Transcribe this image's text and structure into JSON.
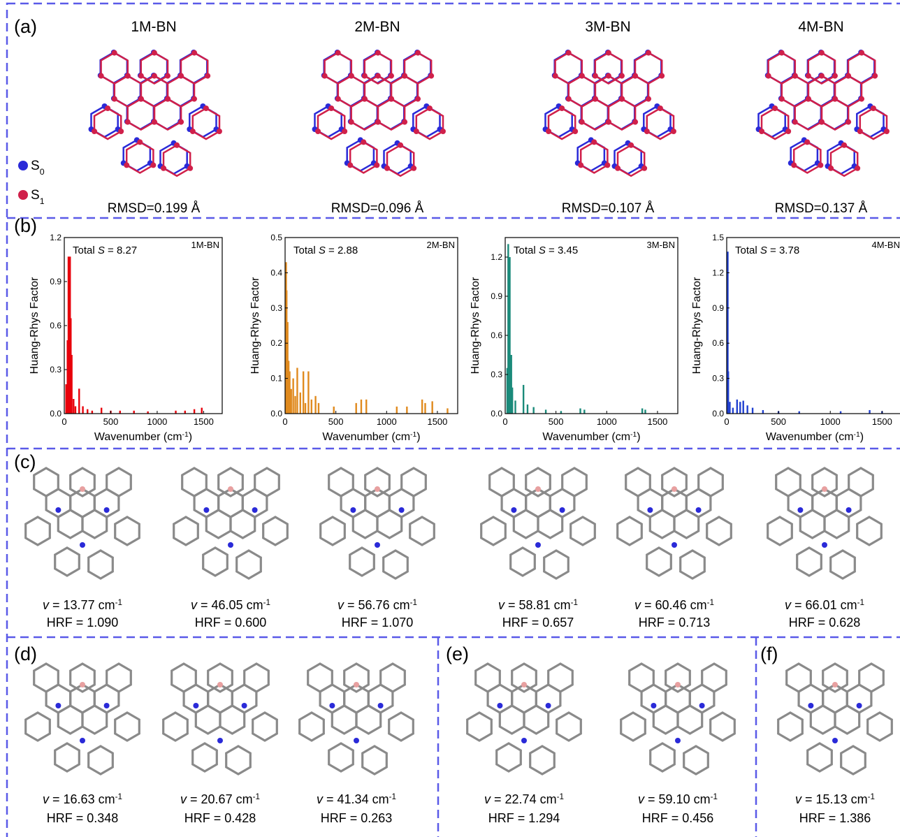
{
  "panel_a": {
    "label": "(a)",
    "structures": [
      {
        "name": "1M-BN",
        "rmsd": "RMSD=0.199 Å"
      },
      {
        "name": "2M-BN",
        "rmsd": "RMSD=0.096 Å"
      },
      {
        "name": "3M-BN",
        "rmsd": "RMSD=0.107 Å"
      },
      {
        "name": "4M-BN",
        "rmsd": "RMSD=0.137 Å"
      }
    ],
    "legend": [
      {
        "symbol": "S",
        "subscript": "0",
        "color": "#2a2ad8"
      },
      {
        "symbol": "S",
        "subscript": "1",
        "color": "#d0204a"
      }
    ]
  },
  "panel_b": {
    "label": "(b)"
  },
  "chart_data": [
    {
      "type": "bar",
      "annotation": {
        "prefix": "Total ",
        "symbol": "S",
        "suffix": " = 8.27"
      },
      "x_label": {
        "text": "Wavenumber (cm",
        "sup": "-1",
        "close": ")"
      },
      "y_label": "Huang-Rhys Factor",
      "x": [
        20,
        35,
        45,
        55,
        62,
        70,
        80,
        100,
        120,
        160,
        200,
        250,
        300,
        400,
        500,
        600,
        750,
        900,
        1200,
        1300,
        1400,
        1480
      ],
      "series": [
        {
          "name": "1M-BN",
          "color": "#e8000b",
          "values": [
            0.2,
            0.5,
            1.07,
            0.9,
            1.07,
            0.65,
            0.4,
            0.1,
            0.05,
            0.17,
            0.05,
            0.03,
            0.02,
            0.04,
            0.02,
            0.02,
            0.02,
            0.015,
            0.02,
            0.02,
            0.03,
            0.04
          ]
        }
      ],
      "xlim": [
        0,
        1700
      ],
      "xticks": [
        0,
        500,
        1000,
        1500
      ],
      "ylim": [
        0,
        1.2
      ],
      "yticks": [
        {
          "value": 0,
          "label": "0.0"
        },
        0.3,
        0.6,
        0.9,
        1.2
      ]
    },
    {
      "type": "bar",
      "annotation": {
        "prefix": "Total ",
        "symbol": "S",
        "suffix": " = 2.88"
      },
      "x_label": {
        "text": "Wavenumber (cm",
        "sup": "-1",
        "close": ")"
      },
      "y_label": "Huang-Rhys Factor",
      "x": [
        10,
        15,
        25,
        35,
        45,
        60,
        80,
        100,
        120,
        150,
        180,
        200,
        230,
        260,
        300,
        330,
        480,
        700,
        750,
        800,
        1100,
        1200,
        1350,
        1380,
        1450,
        1600
      ],
      "series": [
        {
          "name": "2M-BN",
          "color": "#e08a1e",
          "values": [
            0.43,
            0.35,
            0.26,
            0.15,
            0.12,
            0.07,
            0.1,
            0.05,
            0.13,
            0.06,
            0.12,
            0.03,
            0.12,
            0.04,
            0.05,
            0.03,
            0.02,
            0.03,
            0.04,
            0.04,
            0.02,
            0.02,
            0.04,
            0.03,
            0.035,
            0.015
          ]
        }
      ],
      "xlim": [
        0,
        1700
      ],
      "xticks": [
        0,
        500,
        1000,
        1500
      ],
      "ylim": [
        0,
        0.5
      ],
      "yticks": [
        {
          "value": 0,
          "label": "0.0"
        },
        0.1,
        0.2,
        0.3,
        0.4,
        0.5
      ]
    },
    {
      "type": "bar",
      "annotation": {
        "prefix": "Total ",
        "symbol": "S",
        "suffix": " = 3.45"
      },
      "x_label": {
        "text": "Wavenumber (cm",
        "sup": "-1",
        "close": ")"
      },
      "y_label": "Huang-Rhys Factor",
      "x": [
        20,
        30,
        45,
        60,
        70,
        100,
        180,
        220,
        280,
        400,
        550,
        740,
        780,
        1350,
        1380
      ],
      "series": [
        {
          "name": "3M-BN",
          "color": "#1a8a7a",
          "values": [
            0.35,
            1.3,
            1.2,
            0.45,
            0.2,
            0.1,
            0.22,
            0.07,
            0.05,
            0.03,
            0.02,
            0.04,
            0.03,
            0.04,
            0.03
          ]
        }
      ],
      "xlim": [
        0,
        1700
      ],
      "xticks": [
        0,
        500,
        1000,
        1500
      ],
      "ylim": [
        0,
        1.35
      ],
      "yticks": [
        {
          "value": 0,
          "label": "0.0"
        },
        0.3,
        0.6,
        0.9,
        1.2
      ]
    },
    {
      "type": "bar",
      "annotation": {
        "prefix": "Total ",
        "symbol": "S",
        "suffix": " = 3.78"
      },
      "x_label": {
        "text": "Wavenumber (cm",
        "sup": "-1",
        "close": ")"
      },
      "y_label": "Huang-Rhys Factor",
      "x": [
        10,
        15,
        30,
        60,
        100,
        130,
        160,
        200,
        250,
        350,
        500,
        700,
        1100,
        1380,
        1500
      ],
      "series": [
        {
          "name": "4M-BN",
          "color": "#2040d0",
          "values": [
            1.38,
            0.36,
            0.1,
            0.05,
            0.12,
            0.1,
            0.11,
            0.07,
            0.05,
            0.03,
            0.02,
            0.02,
            0.02,
            0.03,
            0.02
          ]
        }
      ],
      "xlim": [
        0,
        1700
      ],
      "xticks": [
        0,
        500,
        1000,
        1500
      ],
      "ylim": [
        0,
        1.5
      ],
      "yticks": [
        {
          "value": 0,
          "label": "0.0"
        },
        0.3,
        0.6,
        0.9,
        1.2,
        1.5
      ]
    }
  ],
  "panel_c": {
    "label": "(c)",
    "modes": [
      {
        "v": "v",
        "freq": " = 13.77 cm",
        "sup": "-1",
        "hrf": "HRF = 1.090"
      },
      {
        "v": "v",
        "freq": " = 46.05 cm",
        "sup": "-1",
        "hrf": "HRF = 0.600"
      },
      {
        "v": "v",
        "freq": " = 56.76 cm",
        "sup": "-1",
        "hrf": "HRF = 1.070"
      },
      {
        "v": "v",
        "freq": " = 58.81 cm",
        "sup": "-1",
        "hrf": "HRF = 0.657"
      },
      {
        "v": "v",
        "freq": " = 60.46 cm",
        "sup": "-1",
        "hrf": "HRF = 0.713"
      },
      {
        "v": "v",
        "freq": " = 66.01 cm",
        "sup": "-1",
        "hrf": "HRF = 0.628"
      }
    ]
  },
  "panel_d": {
    "label": "(d)",
    "modes": [
      {
        "v": "v",
        "freq": " = 16.63 cm",
        "sup": "-1",
        "hrf": "HRF = 0.348"
      },
      {
        "v": "v",
        "freq": " = 20.67 cm",
        "sup": "-1",
        "hrf": "HRF = 0.428"
      },
      {
        "v": "v",
        "freq": " = 41.34 cm",
        "sup": "-1",
        "hrf": "HRF = 0.263"
      }
    ]
  },
  "panel_e": {
    "label": "(e)",
    "modes": [
      {
        "v": "v",
        "freq": " = 22.74 cm",
        "sup": "-1",
        "hrf": "HRF = 1.294"
      },
      {
        "v": "v",
        "freq": " = 59.10 cm",
        "sup": "-1",
        "hrf": "HRF = 0.456"
      }
    ]
  },
  "panel_f": {
    "label": "(f)",
    "modes": [
      {
        "v": "v",
        "freq": " = 15.13 cm",
        "sup": "-1",
        "hrf": "HRF = 1.386"
      }
    ]
  }
}
